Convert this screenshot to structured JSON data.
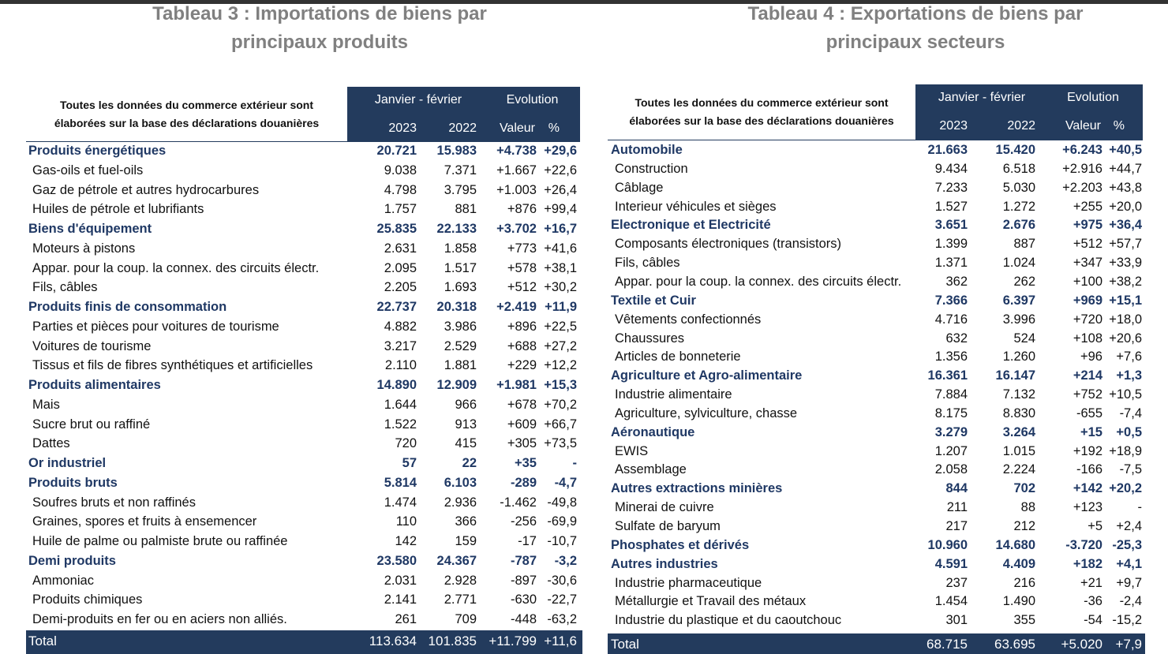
{
  "left": {
    "title": [
      "Tableau 3 : Importations de biens par",
      "principaux produits"
    ],
    "header": {
      "note": [
        "Toutes les données du commerce extérieur sont",
        "élaborées sur la base des déclarations douanières"
      ],
      "period": "Janvier - février",
      "evolution": "Evolution",
      "years": [
        "2023",
        "2022"
      ],
      "value": "Valeur",
      "percent": "%"
    },
    "groups": [
      {
        "name": "Produits énergétiques",
        "values": [
          "20.721",
          "15.983",
          "+4.738",
          "+29,6"
        ],
        "items": [
          {
            "name": "Gas-oils et fuel-oils",
            "values": [
              "9.038",
              "7.371",
              "+1.667",
              "+22,6"
            ]
          },
          {
            "name": "Gaz de pétrole et autres hydrocarbures",
            "values": [
              "4.798",
              "3.795",
              "+1.003",
              "+26,4"
            ]
          },
          {
            "name": "Huiles de pétrole et lubrifiants",
            "values": [
              "1.757",
              "881",
              "+876",
              "+99,4"
            ]
          }
        ]
      },
      {
        "name": "Biens d'équipement",
        "values": [
          "25.835",
          "22.133",
          "+3.702",
          "+16,7"
        ],
        "items": [
          {
            "name": "Moteurs à pistons",
            "values": [
              "2.631",
              "1.858",
              "+773",
              "+41,6"
            ]
          },
          {
            "name": "Appar. pour la coup. la connex. des circuits électr.",
            "values": [
              "2.095",
              "1.517",
              "+578",
              "+38,1"
            ]
          },
          {
            "name": "Fils, câbles",
            "values": [
              "2.205",
              "1.693",
              "+512",
              "+30,2"
            ]
          }
        ]
      },
      {
        "name": "Produits finis de consommation",
        "values": [
          "22.737",
          "20.318",
          "+2.419",
          "+11,9"
        ],
        "items": [
          {
            "name": "Parties et pièces pour voitures de tourisme",
            "values": [
              "4.882",
              "3.986",
              "+896",
              "+22,5"
            ]
          },
          {
            "name": "Voitures de tourisme",
            "values": [
              "3.217",
              "2.529",
              "+688",
              "+27,2"
            ]
          },
          {
            "name": "Tissus et fils de fibres synthétiques et artificielles",
            "values": [
              "2.110",
              "1.881",
              "+229",
              "+12,2"
            ]
          }
        ]
      },
      {
        "name": "Produits alimentaires",
        "values": [
          "14.890",
          "12.909",
          "+1.981",
          "+15,3"
        ],
        "items": [
          {
            "name": "Mais",
            "values": [
              "1.644",
              "966",
              "+678",
              "+70,2"
            ]
          },
          {
            "name": "Sucre brut ou raffiné",
            "values": [
              "1.522",
              "913",
              "+609",
              "+66,7"
            ]
          },
          {
            "name": "Dattes",
            "values": [
              "720",
              "415",
              "+305",
              "+73,5"
            ]
          }
        ]
      },
      {
        "name": "Or industriel",
        "values": [
          "57",
          "22",
          "+35",
          "-"
        ],
        "items": []
      },
      {
        "name": "Produits bruts",
        "values": [
          "5.814",
          "6.103",
          "-289",
          "-4,7"
        ],
        "items": [
          {
            "name": "Soufres bruts et non raffinés",
            "values": [
              "1.474",
              "2.936",
              "-1.462",
              "-49,8"
            ]
          },
          {
            "name": "Graines, spores et fruits à ensemencer",
            "values": [
              "110",
              "366",
              "-256",
              "-69,9"
            ]
          },
          {
            "name": "Huile de palme ou palmiste brute ou raffinée",
            "values": [
              "142",
              "159",
              "-17",
              "-10,7"
            ]
          }
        ]
      },
      {
        "name": "Demi produits",
        "values": [
          "23.580",
          "24.367",
          "-787",
          "-3,2"
        ],
        "items": [
          {
            "name": "Ammoniac",
            "values": [
              "2.031",
              "2.928",
              "-897",
              "-30,6"
            ]
          },
          {
            "name": "Produits chimiques",
            "values": [
              "2.141",
              "2.771",
              "-630",
              "-22,7"
            ]
          },
          {
            "name": "Demi-produits en fer ou en aciers non alliés.",
            "values": [
              "261",
              "709",
              "-448",
              "-63,2"
            ]
          }
        ]
      }
    ],
    "total": {
      "name": "Total",
      "values": [
        "113.634",
        "101.835",
        "+11.799",
        "+11,6"
      ]
    }
  },
  "right": {
    "title": [
      "Tableau 4 : Exportations de biens par",
      "principaux secteurs"
    ],
    "header": {
      "note": [
        "Toutes les données du commerce extérieur sont",
        "élaborées sur la base des déclarations douanières"
      ],
      "period": "Janvier - février",
      "evolution": "Evolution",
      "years": [
        "2023",
        "2022"
      ],
      "value": "Valeur",
      "percent": "%"
    },
    "groups": [
      {
        "name": "Automobile",
        "values": [
          "21.663",
          "15.420",
          "+6.243",
          "+40,5"
        ],
        "items": [
          {
            "name": "Construction",
            "values": [
              "9.434",
              "6.518",
              "+2.916",
              "+44,7"
            ]
          },
          {
            "name": "Câblage",
            "values": [
              "7.233",
              "5.030",
              "+2.203",
              "+43,8"
            ]
          },
          {
            "name": "Interieur véhicules et sièges",
            "values": [
              "1.527",
              "1.272",
              "+255",
              "+20,0"
            ]
          }
        ]
      },
      {
        "name": "Electronique et Electricité",
        "values": [
          "3.651",
          "2.676",
          "+975",
          "+36,4"
        ],
        "items": [
          {
            "name": "Composants électroniques (transistors)",
            "values": [
              "1.399",
              "887",
              "+512",
              "+57,7"
            ]
          },
          {
            "name": "Fils, câbles",
            "values": [
              "1.371",
              "1.024",
              "+347",
              "+33,9"
            ]
          },
          {
            "name": "Appar. pour la coup. la connex. des circuits électr.",
            "values": [
              "362",
              "262",
              "+100",
              "+38,2"
            ]
          }
        ]
      },
      {
        "name": "Textile et Cuir",
        "values": [
          "7.366",
          "6.397",
          "+969",
          "+15,1"
        ],
        "items": [
          {
            "name": "Vêtements confectionnés",
            "values": [
              "4.716",
              "3.996",
              "+720",
              "+18,0"
            ]
          },
          {
            "name": "Chaussures",
            "values": [
              "632",
              "524",
              "+108",
              "+20,6"
            ]
          },
          {
            "name": "Articles de bonneterie",
            "values": [
              "1.356",
              "1.260",
              "+96",
              "+7,6"
            ]
          }
        ]
      },
      {
        "name": "Agriculture et Agro-alimentaire",
        "values": [
          "16.361",
          "16.147",
          "+214",
          "+1,3"
        ],
        "items": [
          {
            "name": "Industrie alimentaire",
            "values": [
              "7.884",
              "7.132",
              "+752",
              "+10,5"
            ]
          },
          {
            "name": "Agriculture, sylviculture, chasse",
            "values": [
              "8.175",
              "8.830",
              "-655",
              "-7,4"
            ]
          }
        ]
      },
      {
        "name": "Aéronautique",
        "values": [
          "3.279",
          "3.264",
          "+15",
          "+0,5"
        ],
        "items": [
          {
            "name": "EWIS",
            "values": [
              "1.207",
              "1.015",
              "+192",
              "+18,9"
            ]
          },
          {
            "name": "Assemblage",
            "values": [
              "2.058",
              "2.224",
              "-166",
              "-7,5"
            ]
          }
        ]
      },
      {
        "name": "Autres extractions minières",
        "values": [
          "844",
          "702",
          "+142",
          "+20,2"
        ],
        "items": [
          {
            "name": "Minerai de cuivre",
            "values": [
              "211",
              "88",
              "+123",
              "-"
            ]
          },
          {
            "name": "Sulfate de baryum",
            "values": [
              "217",
              "212",
              "+5",
              "+2,4"
            ]
          }
        ]
      },
      {
        "name": "Phosphates et dérivés",
        "values": [
          "10.960",
          "14.680",
          "-3.720",
          "-25,3"
        ],
        "items": []
      },
      {
        "name": "Autres industries",
        "values": [
          "4.591",
          "4.409",
          "+182",
          "+4,1"
        ],
        "items": [
          {
            "name": "Industrie pharmaceutique",
            "values": [
              "237",
              "216",
              "+21",
              "+9,7"
            ]
          },
          {
            "name": "Métallurgie et Travail des métaux",
            "values": [
              "1.454",
              "1.490",
              "-36",
              "-2,4"
            ]
          },
          {
            "name": "Industrie du plastique et du caoutchouc",
            "values": [
              "301",
              "355",
              "-54",
              "-15,2"
            ]
          }
        ]
      }
    ],
    "total": {
      "name": "Total",
      "values": [
        "68.715",
        "63.695",
        "+5.020",
        "+7,9"
      ]
    }
  }
}
